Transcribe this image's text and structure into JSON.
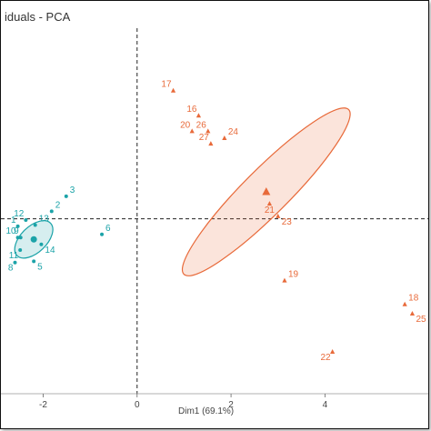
{
  "chart_data": {
    "type": "scatter",
    "title": "iduals - PCA",
    "xlabel": "Dim1 (69.1%)",
    "ylabel": "",
    "xlim": [
      -2.9,
      6.2
    ],
    "ylim": [
      -2.8,
      3.05
    ],
    "x_ticks": [
      -2,
      0,
      2,
      4
    ],
    "x_tick_labels": [
      "-2",
      "0",
      "2",
      "4"
    ],
    "reference_lines": {
      "x": 0,
      "y": 0
    },
    "grid": false,
    "colors": {
      "group1": "#1ba3a8",
      "group2": "#e86a3a",
      "frame": "#111111",
      "axis": "#444444"
    },
    "series": [
      {
        "color": "#1ba3a8",
        "points": [
          {
            "label": "3",
            "x": -1.51,
            "y": 0.36
          },
          {
            "label": "2",
            "x": -1.82,
            "y": 0.12
          },
          {
            "label": "12",
            "x": -2.37,
            "y": -0.02
          },
          {
            "label": "1",
            "x": -2.54,
            "y": -0.12
          },
          {
            "label": "13",
            "x": -2.17,
            "y": -0.1
          },
          {
            "label": "10",
            "x": -2.54,
            "y": -0.3
          },
          {
            "label": "9",
            "x": -2.48,
            "y": -0.3
          },
          {
            "label": "14",
            "x": -2.04,
            "y": -0.41
          },
          {
            "label": "11",
            "x": -2.49,
            "y": -0.5
          },
          {
            "label": "5",
            "x": -2.2,
            "y": -0.68
          },
          {
            "label": "8",
            "x": -2.6,
            "y": -0.7
          },
          {
            "label": "6",
            "x": -0.75,
            "y": -0.25
          }
        ],
        "centroid": {
          "x": -2.2,
          "y": -0.33
        },
        "ellipse": {
          "cx": -2.2,
          "cy": -0.33,
          "rx": 0.24,
          "ry": 0.43,
          "angle_deg": 46
        }
      },
      {
        "color": "#e86a3a",
        "points": [
          {
            "label": "17",
            "x": 0.77,
            "y": 2.05
          },
          {
            "label": "16",
            "x": 1.31,
            "y": 1.65
          },
          {
            "label": "20",
            "x": 1.17,
            "y": 1.4
          },
          {
            "label": "26",
            "x": 1.51,
            "y": 1.4
          },
          {
            "label": "24",
            "x": 1.86,
            "y": 1.29
          },
          {
            "label": "27",
            "x": 1.57,
            "y": 1.2
          },
          {
            "label": "21",
            "x": 2.82,
            "y": 0.24
          },
          {
            "label": "23",
            "x": 3.0,
            "y": 0.04
          },
          {
            "label": "19",
            "x": 3.14,
            "y": -0.99
          },
          {
            "label": "18",
            "x": 5.7,
            "y": -1.37
          },
          {
            "label": "25",
            "x": 5.86,
            "y": -1.52
          },
          {
            "label": "22",
            "x": 4.16,
            "y": -2.13
          }
        ],
        "centroid": {
          "x": 2.75,
          "y": 0.43
        },
        "ellipse": {
          "cx": 2.75,
          "cy": 0.43,
          "rx": 2.15,
          "ry": 0.42,
          "angle_deg": -45
        }
      }
    ]
  }
}
